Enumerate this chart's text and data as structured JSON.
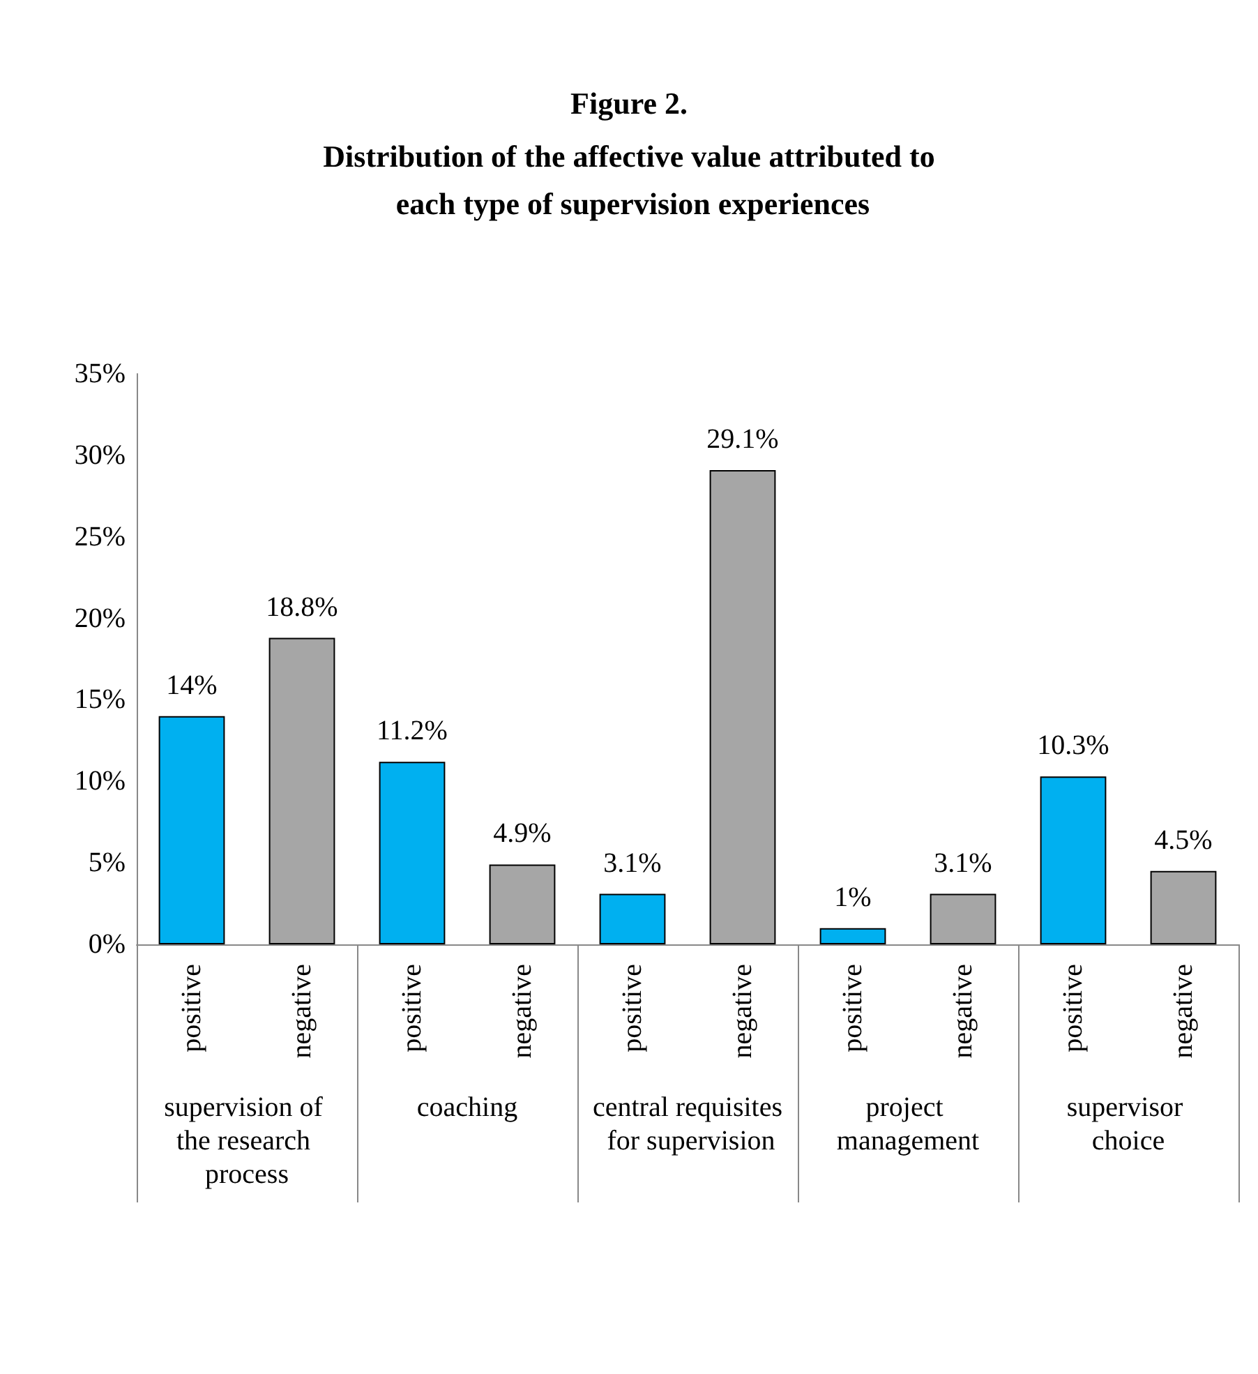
{
  "chart_data": {
    "type": "bar",
    "title": "Figure 2.",
    "subtitle": "Distribution of the affective value attributed to each type of supervision experiences",
    "categories": [
      "positive",
      "negative",
      "positive",
      "negative",
      "positive",
      "negative",
      "positive",
      "negative",
      "positive",
      "negative"
    ],
    "values": [
      14,
      18.8,
      11.2,
      4.9,
      3.1,
      29.1,
      1,
      3.1,
      10.3,
      4.5
    ],
    "value_labels": [
      "14%",
      "18.8%",
      "11.2%",
      "4.9%",
      "3.1%",
      "29.1%",
      "1%",
      "3.1%",
      "10.3%",
      "4.5%"
    ],
    "colors": [
      "#00b0f0",
      "#a6a6a6",
      "#00b0f0",
      "#a6a6a6",
      "#00b0f0",
      "#a6a6a6",
      "#00b0f0",
      "#a6a6a6",
      "#00b0f0",
      "#a6a6a6"
    ],
    "annotations": [
      "supervision of the research process",
      "coaching",
      "central requisites for supervision",
      "project management",
      "supervisor choice"
    ],
    "ylim": [
      0,
      35
    ],
    "yticks": [
      {
        "value": 0,
        "label": "0%"
      },
      {
        "value": 5,
        "label": "5%"
      },
      {
        "value": 10,
        "label": "10%"
      },
      {
        "value": 15,
        "label": "15%"
      },
      {
        "value": 20,
        "label": "20%"
      },
      {
        "value": 25,
        "label": "25%"
      },
      {
        "value": 30,
        "label": "30%"
      },
      {
        "value": 35,
        "label": "35%"
      }
    ],
    "grid": false
  }
}
